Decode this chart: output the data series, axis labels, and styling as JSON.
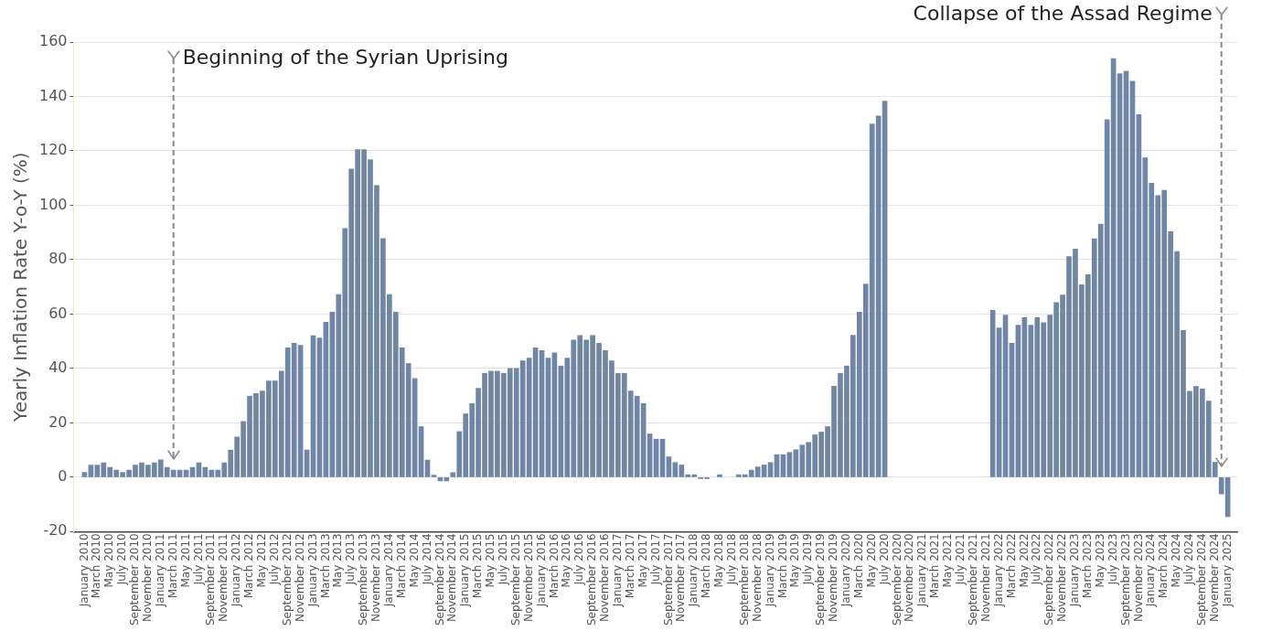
{
  "chart_data": {
    "type": "bar",
    "ylabel": "Yearly Inflation Rate Y-o-Y (%)",
    "color": "#6f86a6",
    "x": [
      "2010-01",
      "2010-02",
      "2010-03",
      "2010-04",
      "2010-05",
      "2010-06",
      "2010-07",
      "2010-08",
      "2010-09",
      "2010-10",
      "2010-11",
      "2010-12",
      "2011-01",
      "2011-02",
      "2011-03",
      "2011-04",
      "2011-05",
      "2011-06",
      "2011-07",
      "2011-08",
      "2011-09",
      "2011-10",
      "2011-11",
      "2011-12",
      "2012-01",
      "2012-02",
      "2012-03",
      "2012-04",
      "2012-05",
      "2012-06",
      "2012-07",
      "2012-08",
      "2012-09",
      "2012-10",
      "2012-11",
      "2012-12",
      "2013-01",
      "2013-02",
      "2013-03",
      "2013-04",
      "2013-05",
      "2013-06",
      "2013-07",
      "2013-08",
      "2013-09",
      "2013-10",
      "2013-11",
      "2013-12",
      "2014-01",
      "2014-02",
      "2014-03",
      "2014-04",
      "2014-05",
      "2014-06",
      "2014-07",
      "2014-08",
      "2014-09",
      "2014-10",
      "2014-11",
      "2014-12",
      "2015-01",
      "2015-02",
      "2015-03",
      "2015-04",
      "2015-05",
      "2015-06",
      "2015-07",
      "2015-08",
      "2015-09",
      "2015-10",
      "2015-11",
      "2015-12",
      "2016-01",
      "2016-02",
      "2016-03",
      "2016-04",
      "2016-05",
      "2016-06",
      "2016-07",
      "2016-08",
      "2016-09",
      "2016-10",
      "2016-11",
      "2016-12",
      "2017-01",
      "2017-02",
      "2017-03",
      "2017-04",
      "2017-05",
      "2017-06",
      "2017-07",
      "2017-08",
      "2017-09",
      "2017-10",
      "2017-11",
      "2017-12",
      "2018-01",
      "2018-02",
      "2018-03",
      "2018-04",
      "2018-05",
      "2018-06",
      "2018-07",
      "2018-08",
      "2018-09",
      "2018-10",
      "2018-11",
      "2018-12",
      "2019-01",
      "2019-02",
      "2019-03",
      "2019-04",
      "2019-05",
      "2019-06",
      "2019-07",
      "2019-08",
      "2019-09",
      "2019-10",
      "2019-11",
      "2019-12",
      "2020-01",
      "2020-02",
      "2020-03",
      "2020-04",
      "2020-05",
      "2020-06",
      "2020-07",
      "2020-08",
      "2020-09",
      "2020-10",
      "2020-11",
      "2020-12",
      "2021-01",
      "2021-02",
      "2021-03",
      "2021-04",
      "2021-05",
      "2021-06",
      "2021-07",
      "2021-08",
      "2021-09",
      "2021-10",
      "2021-11",
      "2021-12",
      "2022-01",
      "2022-02",
      "2022-03",
      "2022-04",
      "2022-05",
      "2022-06",
      "2022-07",
      "2022-08",
      "2022-09",
      "2022-10",
      "2022-11",
      "2022-12",
      "2023-01",
      "2023-02",
      "2023-03",
      "2023-04",
      "2023-05",
      "2023-06",
      "2023-07",
      "2023-08",
      "2023-09",
      "2023-10",
      "2023-11",
      "2023-12",
      "2024-01",
      "2024-02",
      "2024-03",
      "2024-04",
      "2024-05",
      "2024-06",
      "2024-07",
      "2024-08",
      "2024-09",
      "2024-10",
      "2024-11",
      "2024-12",
      "2025-01"
    ],
    "values": [
      1.8,
      4.5,
      4.5,
      5.3,
      3.6,
      2.6,
      1.8,
      2.6,
      4.5,
      5.3,
      4.5,
      5.3,
      6.4,
      3.6,
      2.6,
      2.6,
      2.6,
      3.6,
      5.3,
      3.6,
      2.6,
      2.6,
      5.3,
      10.0,
      14.8,
      20.5,
      29.8,
      30.8,
      31.7,
      35.4,
      35.4,
      39.0,
      47.6,
      49.3,
      48.5,
      10.0,
      52.0,
      51.2,
      57.0,
      60.7,
      67.2,
      91.5,
      113.3,
      120.5,
      120.5,
      116.8,
      107.3,
      87.8,
      67.2,
      60.7,
      47.6,
      41.8,
      36.3,
      18.6,
      6.3,
      0.8,
      -1.4,
      -1.4,
      1.7,
      16.8,
      23.3,
      27.1,
      32.7,
      38.2,
      39.0,
      39.0,
      38.2,
      40.0,
      40.0,
      42.8,
      43.8,
      47.6,
      46.6,
      43.8,
      45.7,
      40.9,
      43.8,
      50.4,
      52.1,
      50.4,
      52.1,
      49.3,
      46.6,
      42.8,
      38.2,
      38.2,
      31.7,
      29.8,
      27.1,
      15.9,
      14.0,
      14.0,
      7.5,
      5.4,
      4.5,
      0.9,
      0.9,
      -0.5,
      -0.5,
      null,
      0.9,
      null,
      null,
      0.9,
      0.9,
      2.6,
      3.8,
      4.5,
      5.4,
      8.3,
      8.3,
      9.1,
      10.1,
      11.8,
      12.8,
      15.6,
      16.6,
      18.6,
      33.5,
      38.2,
      40.9,
      52.2,
      60.7,
      71.0,
      129.9,
      132.8,
      138.3,
      null,
      null,
      null,
      null,
      null,
      null,
      null,
      null,
      null,
      null,
      null,
      null,
      null,
      null,
      null,
      null,
      61.4,
      54.9,
      59.6,
      49.3,
      55.9,
      58.7,
      55.9,
      58.7,
      56.8,
      59.6,
      64.2,
      67.0,
      81.1,
      83.9,
      70.8,
      74.5,
      87.7,
      93.1,
      131.5,
      153.9,
      148.4,
      149.3,
      145.6,
      133.3,
      117.4,
      108.1,
      103.6,
      105.5,
      90.3,
      83.0,
      54.0,
      31.6,
      33.4,
      32.5,
      28.0,
      5.5,
      -6.2,
      -14.5
    ],
    "xlim": [
      "2009-12-10",
      "2025-01-16"
    ],
    "xticks": [
      {
        "value": "2010-01",
        "label": "January 2010"
      },
      {
        "value": "2010-03",
        "label": "March 2010"
      },
      {
        "value": "2010-05",
        "label": "May 2010"
      },
      {
        "value": "2010-07",
        "label": "July 2010"
      },
      {
        "value": "2010-09",
        "label": "September 2010"
      },
      {
        "value": "2010-11",
        "label": "November 2010"
      },
      {
        "value": "2011-01",
        "label": "January 2011"
      },
      {
        "value": "2011-03",
        "label": "March 2011"
      },
      {
        "value": "2011-05",
        "label": "May 2011"
      },
      {
        "value": "2011-07",
        "label": "July 2011"
      },
      {
        "value": "2011-09",
        "label": "September 2011"
      },
      {
        "value": "2011-11",
        "label": "November 2011"
      },
      {
        "value": "2012-01",
        "label": "January 2012"
      },
      {
        "value": "2012-03",
        "label": "March 2012"
      },
      {
        "value": "2012-05",
        "label": "May 2012"
      },
      {
        "value": "2012-07",
        "label": "July 2012"
      },
      {
        "value": "2012-09",
        "label": "September 2012"
      },
      {
        "value": "2012-11",
        "label": "November 2012"
      },
      {
        "value": "2013-01",
        "label": "January 2013"
      },
      {
        "value": "2013-03",
        "label": "March 2013"
      },
      {
        "value": "2013-05",
        "label": "May 2013"
      },
      {
        "value": "2013-07",
        "label": "July 2013"
      },
      {
        "value": "2013-09",
        "label": "September 2013"
      },
      {
        "value": "2013-11",
        "label": "November 2013"
      },
      {
        "value": "2014-01",
        "label": "January 2014"
      },
      {
        "value": "2014-03",
        "label": "March 2014"
      },
      {
        "value": "2014-05",
        "label": "May 2014"
      },
      {
        "value": "2014-07",
        "label": "July 2014"
      },
      {
        "value": "2014-09",
        "label": "September 2014"
      },
      {
        "value": "2014-11",
        "label": "November 2014"
      },
      {
        "value": "2015-01",
        "label": "January 2015"
      },
      {
        "value": "2015-03",
        "label": "March 2015"
      },
      {
        "value": "2015-05",
        "label": "May 2015"
      },
      {
        "value": "2015-07",
        "label": "July 2015"
      },
      {
        "value": "2015-09",
        "label": "September 2015"
      },
      {
        "value": "2015-11",
        "label": "November 2015"
      },
      {
        "value": "2016-01",
        "label": "January 2016"
      },
      {
        "value": "2016-03",
        "label": "March 2016"
      },
      {
        "value": "2016-05",
        "label": "May 2016"
      },
      {
        "value": "2016-07",
        "label": "July 2016"
      },
      {
        "value": "2016-09",
        "label": "September 2016"
      },
      {
        "value": "2016-11",
        "label": "November 2016"
      },
      {
        "value": "2017-01",
        "label": "January 2017"
      },
      {
        "value": "2017-03",
        "label": "March 2017"
      },
      {
        "value": "2017-05",
        "label": "May 2017"
      },
      {
        "value": "2017-07",
        "label": "July 2017"
      },
      {
        "value": "2017-09",
        "label": "September 2017"
      },
      {
        "value": "2017-11",
        "label": "November 2017"
      },
      {
        "value": "2018-01",
        "label": "January 2018"
      },
      {
        "value": "2018-03",
        "label": "March 2018"
      },
      {
        "value": "2018-05",
        "label": "May 2018"
      },
      {
        "value": "2018-07",
        "label": "July 2018"
      },
      {
        "value": "2018-09",
        "label": "September 2018"
      },
      {
        "value": "2018-11",
        "label": "November 2018"
      },
      {
        "value": "2019-01",
        "label": "January 2019"
      },
      {
        "value": "2019-03",
        "label": "March 2019"
      },
      {
        "value": "2019-05",
        "label": "May 2019"
      },
      {
        "value": "2019-07",
        "label": "July 2019"
      },
      {
        "value": "2019-09",
        "label": "September 2019"
      },
      {
        "value": "2019-11",
        "label": "November 2019"
      },
      {
        "value": "2020-01",
        "label": "January 2020"
      },
      {
        "value": "2020-03",
        "label": "March 2020"
      },
      {
        "value": "2020-05",
        "label": "May 2020"
      },
      {
        "value": "2020-07",
        "label": "July 2020"
      },
      {
        "value": "2020-09",
        "label": "September 2020"
      },
      {
        "value": "2020-11",
        "label": "November 2020"
      },
      {
        "value": "2021-01",
        "label": "January 2021"
      },
      {
        "value": "2021-03",
        "label": "March 2021"
      },
      {
        "value": "2021-05",
        "label": "May 2021"
      },
      {
        "value": "2021-07",
        "label": "July 2021"
      },
      {
        "value": "2021-09",
        "label": "September 2021"
      },
      {
        "value": "2021-11",
        "label": "November 2021"
      },
      {
        "value": "2022-01",
        "label": "January 2022"
      },
      {
        "value": "2022-03",
        "label": "March 2022"
      },
      {
        "value": "2022-05",
        "label": "May 2022"
      },
      {
        "value": "2022-07",
        "label": "July 2022"
      },
      {
        "value": "2022-09",
        "label": "September 2022"
      },
      {
        "value": "2022-11",
        "label": "November 2022"
      },
      {
        "value": "2023-01",
        "label": "January 2023"
      },
      {
        "value": "2023-03",
        "label": "March 2023"
      },
      {
        "value": "2023-05",
        "label": "May 2023"
      },
      {
        "value": "2023-07",
        "label": "July 2023"
      },
      {
        "value": "2023-09",
        "label": "September 2023"
      },
      {
        "value": "2023-11",
        "label": "November 2023"
      },
      {
        "value": "2024-01",
        "label": "January 2024"
      },
      {
        "value": "2024-03",
        "label": "March 2024"
      },
      {
        "value": "2024-05",
        "label": "May 2024"
      },
      {
        "value": "2024-07",
        "label": "July 2024"
      },
      {
        "value": "2024-09",
        "label": "September 2024"
      },
      {
        "value": "2024-11",
        "label": "November 2024"
      },
      {
        "value": "2025-01",
        "label": "January 2025"
      }
    ],
    "ylim": [
      -20,
      160
    ],
    "yticks": [
      -20,
      0,
      20,
      40,
      60,
      80,
      100,
      120,
      140,
      160
    ],
    "grid": "y",
    "ref_lines": [
      {
        "axis": "x",
        "value": "2011-03",
        "label": "Beginning of the Syrian Uprising",
        "color": "#888888",
        "line_style": "dashed"
      },
      {
        "axis": "x",
        "value": "2024-12",
        "label": "Collapse of the Assad Regime",
        "color": "#888888",
        "line_style": "dashed"
      }
    ]
  }
}
